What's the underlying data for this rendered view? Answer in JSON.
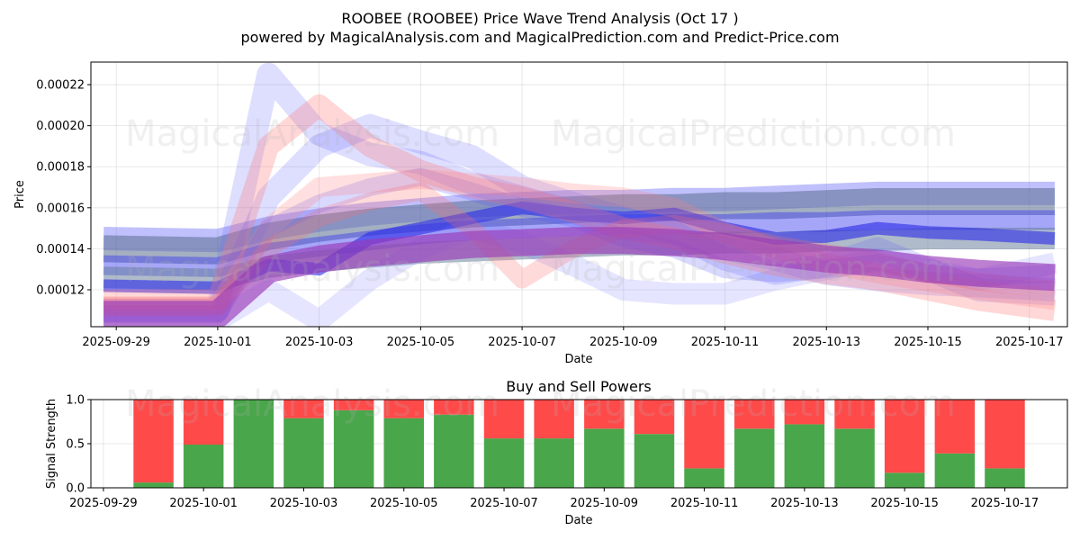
{
  "chart_data": [
    {
      "type": "line",
      "title_line1": "ROOBEE (ROOBEE) Price Wave Trend Analysis (Oct 17 )",
      "title_line2": "powered by MagicalAnalysis.com and MagicalPrediction.com and Predict-Price.com",
      "xlabel": "Date",
      "ylabel": "Price",
      "x_range": [
        "2025-09-28T12:00",
        "2025-10-17T18:00"
      ],
      "ylim": [
        0.000102,
        0.000231
      ],
      "yticks": [
        "0.00012",
        "0.00014",
        "0.00016",
        "0.00018",
        "0.00020",
        "0.00022"
      ],
      "xticks": [
        "2025-09-29",
        "2025-10-01",
        "2025-10-03",
        "2025-10-05",
        "2025-10-07",
        "2025-10-09",
        "2025-10-11",
        "2025-10-13",
        "2025-10-15",
        "2025-10-17"
      ],
      "grid": true,
      "watermarks": [
        "MagicalAnalysis.com",
        "MagicalPrediction.com",
        "MagicalAnalysis.com",
        "MagicalPrediction.com"
      ],
      "dates": [
        "2025-09-28T18:00",
        "2025-10-01",
        "2025-10-02",
        "2025-10-03",
        "2025-10-04",
        "2025-10-05",
        "2025-10-06",
        "2025-10-07",
        "2025-10-08",
        "2025-10-09",
        "2025-10-10",
        "2025-10-11",
        "2025-10-12",
        "2025-10-13",
        "2025-10-14",
        "2025-10-15",
        "2025-10-16",
        "2025-10-17T12:00"
      ],
      "series": [
        {
          "name": "blue band 1",
          "color": "#4a4af7",
          "opacity": 0.35,
          "width": 26,
          "values": [
            0.000145,
            0.000144,
            0.00015,
            0.000154,
            0.000157,
            0.000159,
            0.000161,
            0.000162,
            0.000163,
            0.000163,
            0.000164,
            0.000164,
            0.000165,
            0.000166,
            0.000167,
            0.000167,
            0.000167,
            0.000167
          ]
        },
        {
          "name": "slate band",
          "color": "#5a6e8f",
          "opacity": 0.55,
          "width": 30,
          "values": [
            0.00014,
            0.000139,
            0.000146,
            0.00015,
            0.000153,
            0.000155,
            0.000157,
            0.000158,
            0.000159,
            0.00016,
            0.00016,
            0.000161,
            0.000161,
            0.000162,
            0.000163,
            0.000163,
            0.000163,
            0.000163
          ]
        },
        {
          "name": "blue band 2",
          "color": "#3a3af0",
          "opacity": 0.45,
          "width": 22,
          "values": [
            0.000132,
            0.000131,
            0.000138,
            0.000141,
            0.000144,
            0.000147,
            0.000149,
            0.00015,
            0.000151,
            0.000152,
            0.000152,
            0.000152,
            0.000153,
            0.000153,
            0.000154,
            0.000154,
            0.000154,
            0.000154
          ]
        },
        {
          "name": "slate band 2",
          "color": "#607896",
          "opacity": 0.5,
          "width": 24,
          "values": [
            0.000126,
            0.000125,
            0.000131,
            0.000134,
            0.000136,
            0.000138,
            0.000139,
            0.00014,
            0.000141,
            0.000142,
            0.000142,
            0.000143,
            0.000143,
            0.000144,
            0.000144,
            0.000145,
            0.000145,
            0.000145
          ]
        },
        {
          "name": "blue band 3",
          "color": "#2a2ae8",
          "opacity": 0.6,
          "width": 14,
          "values": [
            0.000122,
            0.000121,
            0.000132,
            0.00013,
            0.000145,
            0.00015,
            0.000155,
            0.00016,
            0.000157,
            0.000155,
            0.000157,
            0.00015,
            0.000145,
            0.000146,
            0.00015,
            0.000148,
            0.000147,
            0.000145
          ]
        },
        {
          "name": "blue peak 1",
          "color": "#6a6aff",
          "opacity": 0.22,
          "width": 26,
          "values": [
            0.00011,
            0.00011,
            0.000225,
            0.000196,
            0.000186,
            0.000182,
            0.000172,
            0.000165,
            0.000158,
            0.00015,
            0.000148,
            0.00014,
            0.000135,
            0.000128,
            0.000125,
            0.000123,
            0.000122,
            0.00012
          ]
        },
        {
          "name": "blue peak 2",
          "color": "#5a5aff",
          "opacity": 0.2,
          "width": 26,
          "values": [
            0.00011,
            0.00011,
            0.000165,
            0.00019,
            0.0002,
            0.000192,
            0.000185,
            0.00017,
            0.000162,
            0.000155,
            0.000148,
            0.000135,
            0.000128,
            0.000132,
            0.00014,
            0.00013,
            0.00012,
            0.000118
          ]
        },
        {
          "name": "blue peak 3",
          "color": "#7070ff",
          "opacity": 0.18,
          "width": 24,
          "values": [
            0.000105,
            0.000105,
            0.00012,
            0.000105,
            0.000125,
            0.00014,
            0.00015,
            0.000143,
            0.000132,
            0.00012,
            0.000118,
            0.000118,
            0.000125,
            0.00013,
            0.000135,
            0.00013,
            0.000125,
            0.000133
          ]
        },
        {
          "name": "blue mid 4",
          "color": "#5050ff",
          "opacity": 0.22,
          "width": 20,
          "values": [
            0.000108,
            0.000108,
            0.00015,
            0.000162,
            0.00017,
            0.000175,
            0.000168,
            0.00016,
            0.000155,
            0.000145,
            0.00014,
            0.00013,
            0.000128,
            0.00013,
            0.000133,
            0.000128,
            0.000126,
            0.000128
          ]
        },
        {
          "name": "red peak 1",
          "color": "#ff7070",
          "opacity": 0.28,
          "width": 24,
          "values": [
            0.000115,
            0.000115,
            0.00019,
            0.00021,
            0.00019,
            0.000178,
            0.00017,
            0.000165,
            0.000158,
            0.00015,
            0.000145,
            0.000138,
            0.000132,
            0.000128,
            0.000125,
            0.00012,
            0.000115,
            0.00011
          ]
        },
        {
          "name": "red peak 2",
          "color": "#ff8080",
          "opacity": 0.25,
          "width": 22,
          "values": [
            0.000112,
            0.000112,
            0.00015,
            0.00017,
            0.000172,
            0.000174,
            0.000172,
            0.00017,
            0.000167,
            0.000165,
            0.00016,
            0.000148,
            0.00014,
            0.000133,
            0.000128,
            0.000124,
            0.00012,
            0.000115
          ]
        },
        {
          "name": "red dip",
          "color": "#ff6a6a",
          "opacity": 0.25,
          "width": 20,
          "values": [
            0.000112,
            0.000112,
            0.00014,
            0.000155,
            0.000163,
            0.000168,
            0.00015,
            0.000125,
            0.00014,
            0.00015,
            0.000152,
            0.000148,
            0.000142,
            0.000138,
            0.000134,
            0.000128,
            0.000124,
            0.00012
          ]
        },
        {
          "name": "purple start",
          "color": "#9a3ab8",
          "opacity": 0.65,
          "width": 30,
          "values": [
            0.000108,
            0.000108,
            0.00013,
            0.000135,
            0.000138,
            0.00014,
            0.000142,
            0.000143,
            0.000144,
            0.000144,
            0.000143,
            0.000141,
            0.000138,
            0.000135,
            0.000133,
            0.00013,
            0.000128,
            0.000126
          ]
        }
      ]
    },
    {
      "type": "bar",
      "title": "Buy and Sell Powers",
      "xlabel": "Date",
      "ylabel": "Signal Strength",
      "ylim": [
        0,
        1
      ],
      "yticks": [
        "0.0",
        "0.5",
        "1.0"
      ],
      "xticks": [
        "2025-09-29",
        "2025-10-01",
        "2025-10-03",
        "2025-10-05",
        "2025-10-07",
        "2025-10-09",
        "2025-10-11",
        "2025-10-13",
        "2025-10-15",
        "2025-10-17"
      ],
      "categories": [
        "2025-09-30",
        "2025-10-01",
        "2025-10-02",
        "2025-10-03",
        "2025-10-04",
        "2025-10-05",
        "2025-10-06",
        "2025-10-07",
        "2025-10-08",
        "2025-10-09",
        "2025-10-10",
        "2025-10-11",
        "2025-10-12",
        "2025-10-13",
        "2025-10-14",
        "2025-10-15",
        "2025-10-16",
        "2025-10-17"
      ],
      "series": [
        {
          "name": "Buy",
          "color": "#4aa64a",
          "values": [
            0.06,
            0.49,
            1.0,
            0.79,
            0.88,
            0.79,
            0.83,
            0.56,
            0.56,
            0.67,
            0.61,
            0.22,
            0.67,
            0.72,
            0.67,
            0.17,
            0.39,
            0.22
          ]
        },
        {
          "name": "Sell",
          "color": "#ff4a4a",
          "values": [
            0.94,
            0.51,
            0.0,
            0.21,
            0.12,
            0.21,
            0.17,
            0.44,
            0.44,
            0.33,
            0.39,
            0.78,
            0.33,
            0.28,
            0.33,
            0.83,
            0.61,
            0.78
          ]
        }
      ],
      "watermarks": [
        "MagicalAnalysis.com",
        "MagicalPrediction.com"
      ]
    }
  ]
}
